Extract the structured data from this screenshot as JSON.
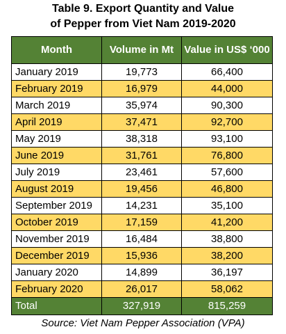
{
  "title": {
    "line1": "Table 9. Export Quantity and Value",
    "line2": "of Pepper from Viet Nam 2019-2020"
  },
  "colors": {
    "header_bg": "#548235",
    "header_text": "#ffffff",
    "row_alt_bg": "#ffd966",
    "row_bg": "#ffffff"
  },
  "table": {
    "headers": [
      "Month",
      "Volume in Mt",
      "Value in US$ ‘000"
    ],
    "rows": [
      [
        "January 2019",
        "19,773",
        "66,400"
      ],
      [
        "February 2019",
        "16,979",
        "44,000"
      ],
      [
        "March 2019",
        "35,974",
        "90,300"
      ],
      [
        "April 2019",
        "37,471",
        "92,700"
      ],
      [
        "May 2019",
        "38,318",
        "93,100"
      ],
      [
        "June 2019",
        "31,761",
        "76,800"
      ],
      [
        "July 2019",
        "23,461",
        "57,600"
      ],
      [
        "August 2019",
        "19,456",
        "46,800"
      ],
      [
        "September 2019",
        "14,231",
        "35,100"
      ],
      [
        "October 2019",
        "17,159",
        "41,200"
      ],
      [
        "November 2019",
        "16,484",
        "38,800"
      ],
      [
        "December 2019",
        "15,936",
        "38,200"
      ],
      [
        "January 2020",
        "14,899",
        "36,197"
      ],
      [
        "February 2020",
        "26,017",
        "58,062"
      ]
    ],
    "total": [
      "Total",
      "327,919",
      "815,259"
    ]
  },
  "source": "Source: Viet Nam Pepper Association (VPA)"
}
